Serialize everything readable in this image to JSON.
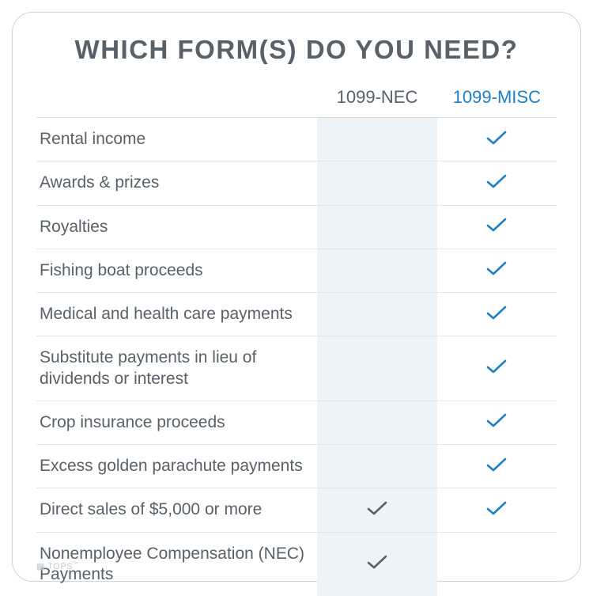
{
  "title": "WHICH FORM(S) DO YOU NEED?",
  "columns": {
    "nec": "1099-NEC",
    "misc": "1099-MISC"
  },
  "colors": {
    "title": "#5a6068",
    "text": "#5a6068",
    "misc_header": "#1e7fc2",
    "tint_bg": "#eef3f8",
    "border": "#e3e6e9",
    "check_nec": "#5a6068",
    "check_misc": "#1e7fc2"
  },
  "rows": [
    {
      "label": "Rental income",
      "nec": false,
      "misc": true
    },
    {
      "label": "Awards & prizes",
      "nec": false,
      "misc": true
    },
    {
      "label": "Royalties",
      "nec": false,
      "misc": true
    },
    {
      "label": "Fishing boat proceeds",
      "nec": false,
      "misc": true
    },
    {
      "label": "Medical and health care payments",
      "nec": false,
      "misc": true
    },
    {
      "label": "Substitute payments in lieu of dividends or interest",
      "nec": false,
      "misc": true
    },
    {
      "label": "Crop insurance proceeds",
      "nec": false,
      "misc": true
    },
    {
      "label": "Excess golden parachute payments",
      "nec": false,
      "misc": true
    },
    {
      "label": "Direct sales of $5,000 or more",
      "nec": true,
      "misc": true
    },
    {
      "label": "Nonemployee Compensation (NEC) Payments",
      "nec": true,
      "misc": false
    }
  ],
  "brand": "TOPS"
}
